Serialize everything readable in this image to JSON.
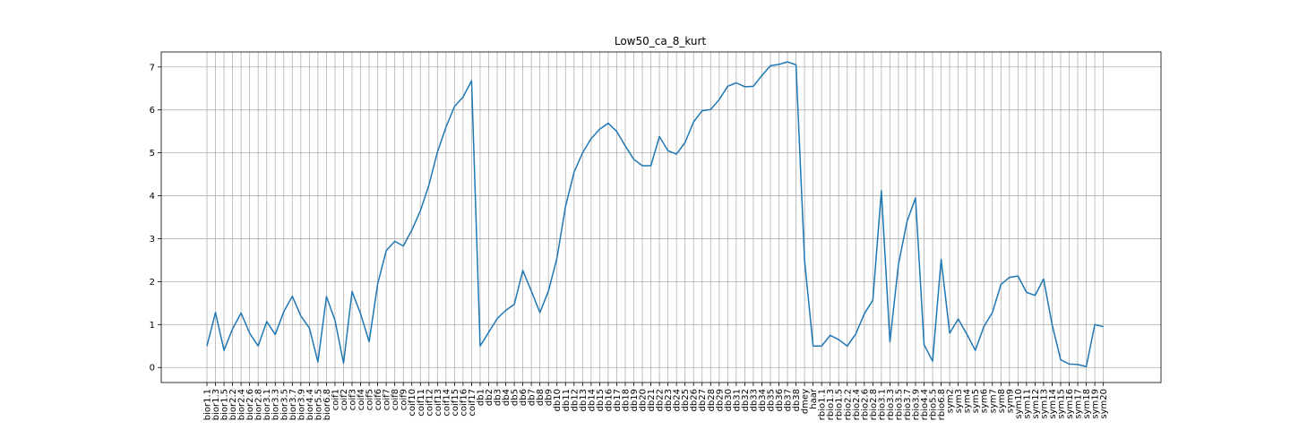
{
  "chart_data": {
    "type": "line",
    "title": "Low50_ca_8_kurt",
    "xlabel": "",
    "ylabel": "",
    "ylim": [
      -0.35,
      7.35
    ],
    "yticks": [
      "0",
      "1",
      "2",
      "3",
      "4",
      "5",
      "6",
      "7"
    ],
    "grid": true,
    "line_color": "#1f77b4",
    "categories": [
      "bior1.1",
      "bior1.3",
      "bior1.5",
      "bior2.2",
      "bior2.4",
      "bior2.6",
      "bior2.8",
      "bior3.1",
      "bior3.3",
      "bior3.5",
      "bior3.7",
      "bior3.9",
      "bior4.4",
      "bior5.5",
      "bior6.8",
      "coif1",
      "coif2",
      "coif3",
      "coif4",
      "coif5",
      "coif6",
      "coif7",
      "coif8",
      "coif9",
      "coif10",
      "coif11",
      "coif12",
      "coif13",
      "coif14",
      "coif15",
      "coif16",
      "coif17",
      "db1",
      "db2",
      "db3",
      "db4",
      "db5",
      "db6",
      "db7",
      "db8",
      "db9",
      "db10",
      "db11",
      "db12",
      "db13",
      "db14",
      "db15",
      "db16",
      "db17",
      "db18",
      "db19",
      "db20",
      "db21",
      "db22",
      "db23",
      "db24",
      "db25",
      "db26",
      "db27",
      "db28",
      "db29",
      "db30",
      "db31",
      "db32",
      "db33",
      "db34",
      "db35",
      "db36",
      "db37",
      "db38",
      "dmey",
      "haar",
      "rbio1.1",
      "rbio1.3",
      "rbio1.5",
      "rbio2.2",
      "rbio2.4",
      "rbio2.6",
      "rbio2.8",
      "rbio3.1",
      "rbio3.3",
      "rbio3.5",
      "rbio3.7",
      "rbio3.9",
      "rbio4.4",
      "rbio5.5",
      "rbio6.8",
      "sym2",
      "sym3",
      "sym4",
      "sym5",
      "sym6",
      "sym7",
      "sym8",
      "sym9",
      "sym10",
      "sym11",
      "sym12",
      "sym13",
      "sym14",
      "sym15",
      "sym16",
      "sym17",
      "sym18",
      "sym19",
      "sym20"
    ],
    "series": [
      {
        "values": [
          0.5,
          1.28,
          0.4,
          0.9,
          1.27,
          0.8,
          0.5,
          1.07,
          0.77,
          1.3,
          1.66,
          1.2,
          0.92,
          0.13,
          1.65,
          1.1,
          0.1,
          1.77,
          1.25,
          0.6,
          1.95,
          2.72,
          2.94,
          2.83,
          3.2,
          3.65,
          4.25,
          5.02,
          5.6,
          6.08,
          6.3,
          6.68,
          0.5,
          0.82,
          1.14,
          1.33,
          1.47,
          2.26,
          1.78,
          1.28,
          1.78,
          2.55,
          3.75,
          4.55,
          5.0,
          5.33,
          5.55,
          5.69,
          5.5,
          5.16,
          4.85,
          4.7,
          4.7,
          5.38,
          5.05,
          4.97,
          5.24,
          5.72,
          5.98,
          6.01,
          6.24,
          6.55,
          6.63,
          6.54,
          6.55,
          6.8,
          7.03,
          7.06,
          7.12,
          7.05,
          2.5,
          0.5,
          0.5,
          0.75,
          0.65,
          0.5,
          0.78,
          1.25,
          1.57,
          4.12,
          0.6,
          2.4,
          3.4,
          3.95,
          0.53,
          0.15,
          2.52,
          0.8,
          1.13,
          0.78,
          0.4,
          0.95,
          1.28,
          1.93,
          2.1,
          2.13,
          1.75,
          1.68,
          2.06,
          1.0,
          0.18,
          0.08,
          0.07,
          0.02,
          1.0,
          0.95
        ]
      }
    ]
  }
}
